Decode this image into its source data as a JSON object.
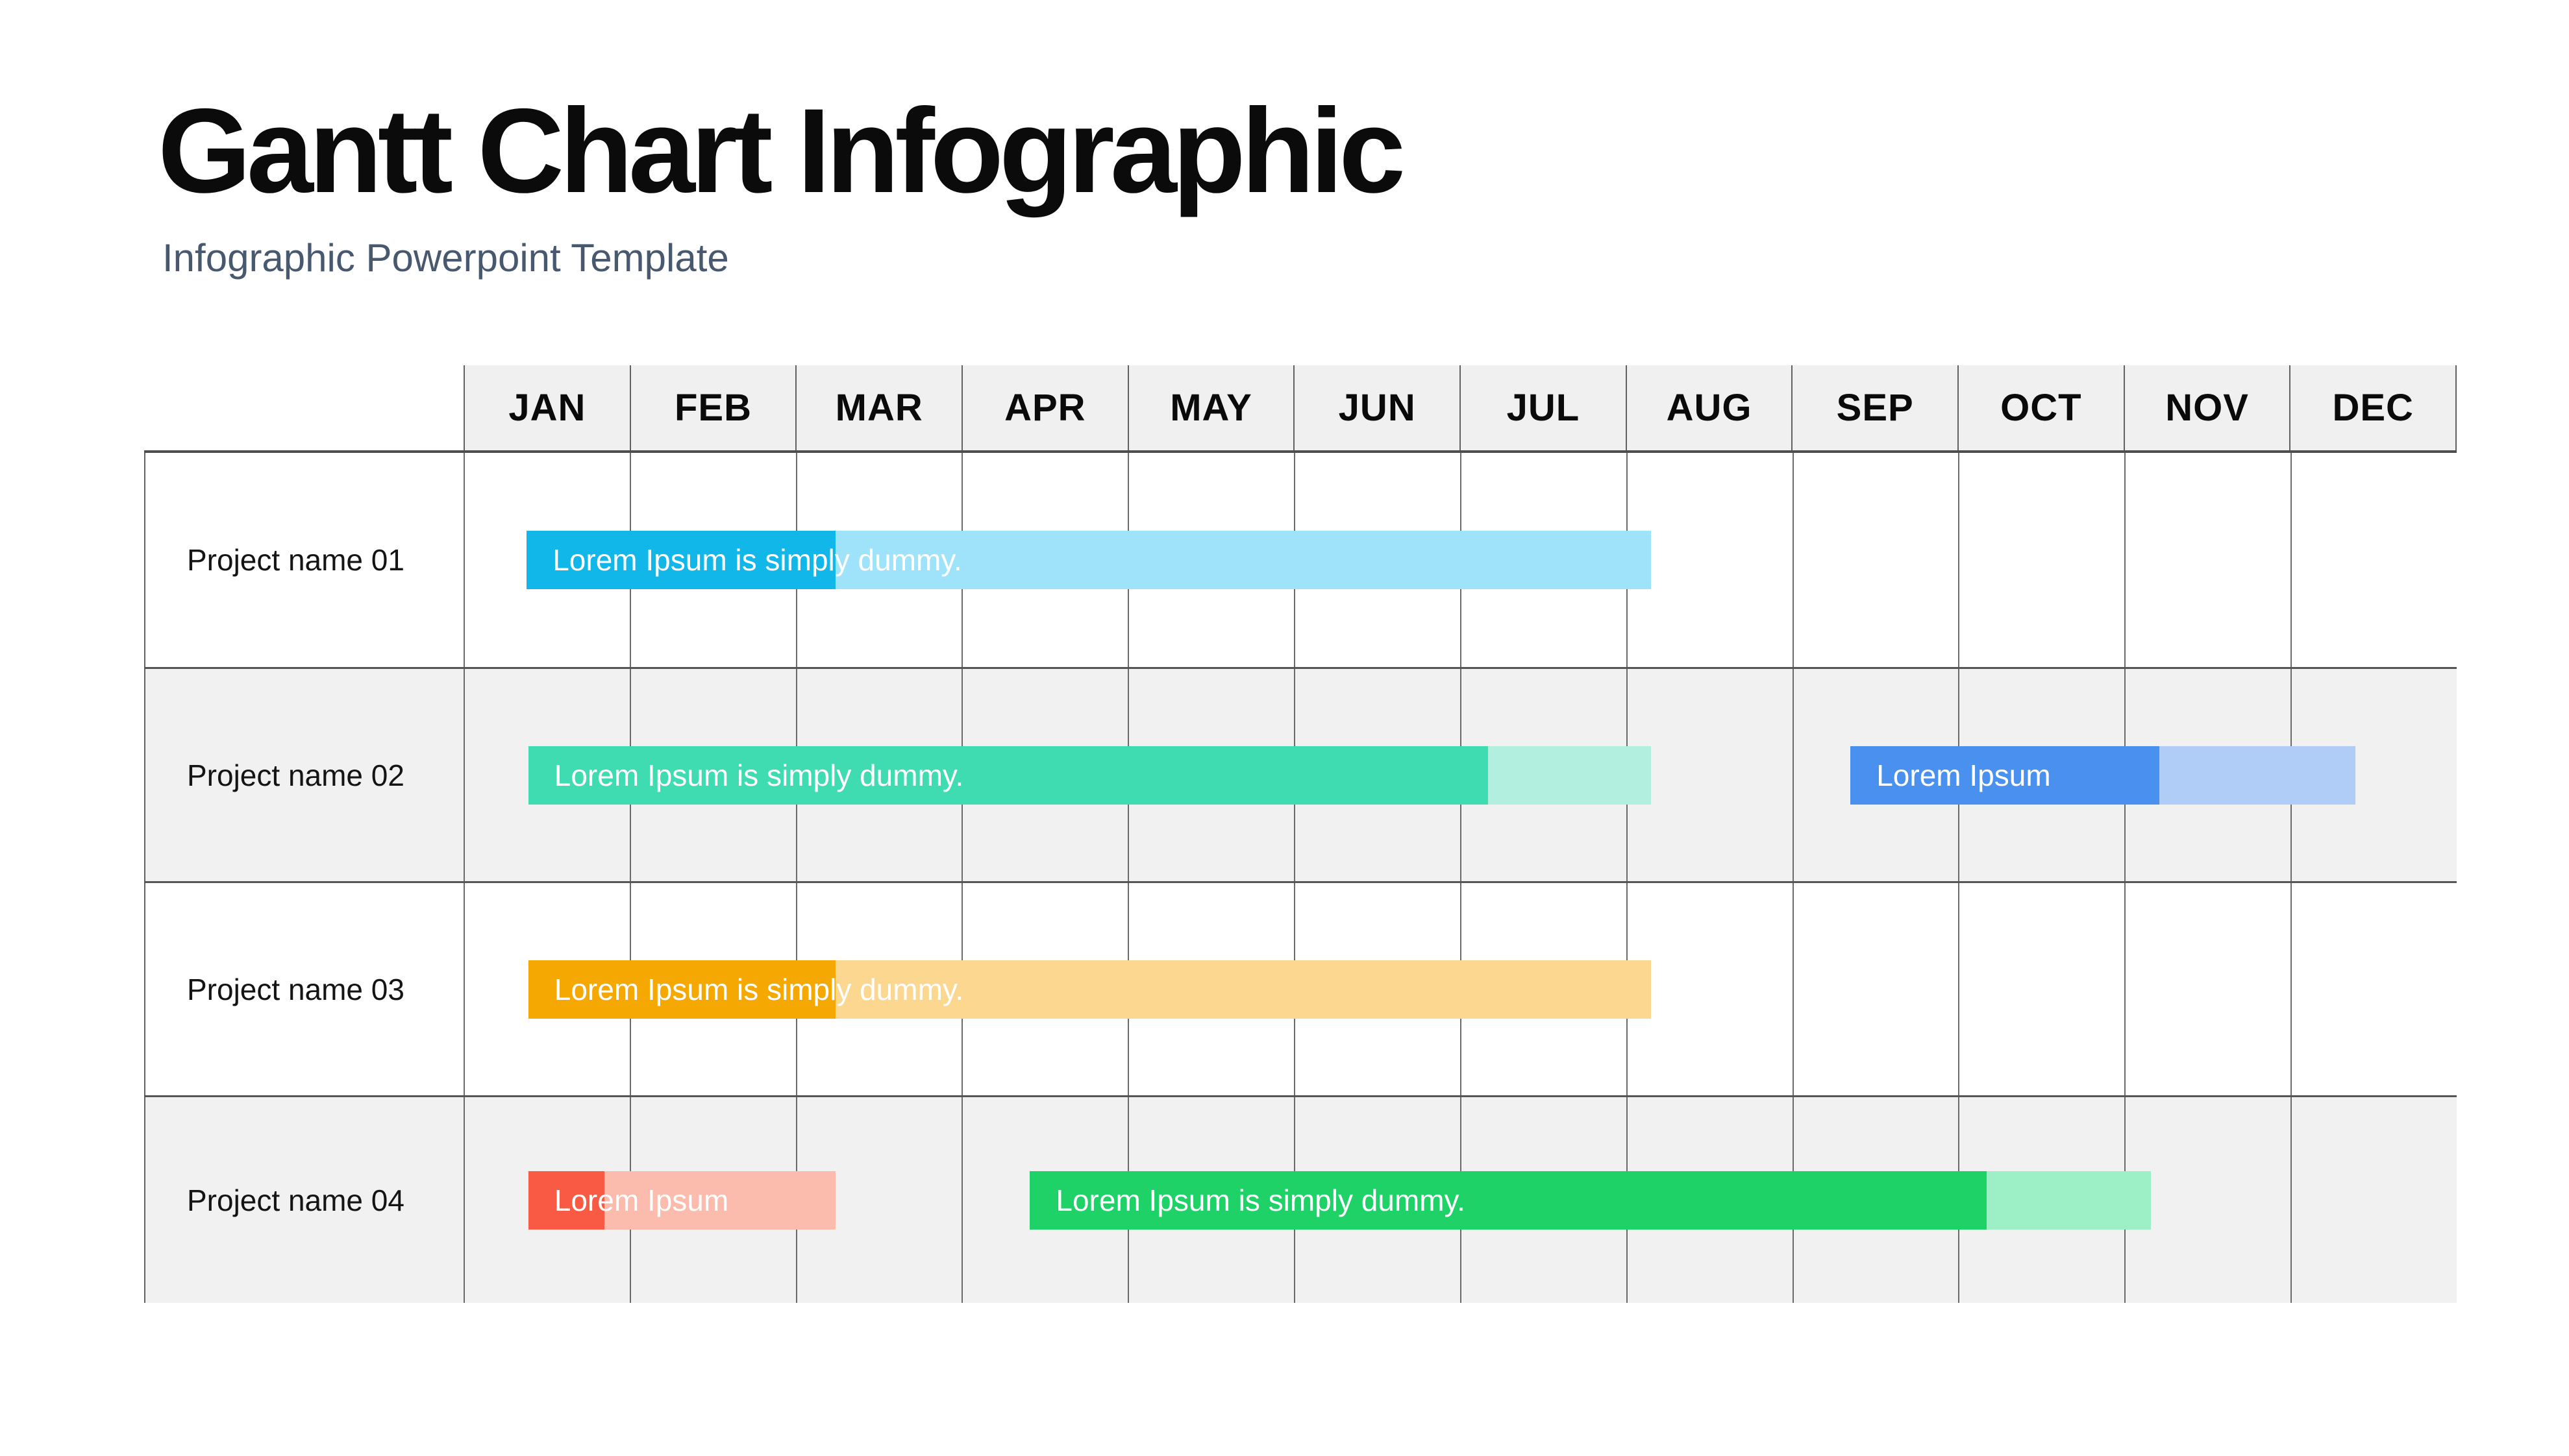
{
  "page": {
    "title": "Gantt Chart Infographic",
    "subtitle": "Infographic Powerpoint Template"
  },
  "colors": {
    "header_bg": "#F0F0F0",
    "row_alt_bg": "#F1F1F1",
    "grid_line": "#6a6a6a",
    "row_separator": "#555555",
    "title_color": "#0b0b0b",
    "subtitle_color": "#48596F",
    "bar_text_color": "#ffffff"
  },
  "chart_data": {
    "type": "gantt",
    "title": "Gantt Chart Infographic",
    "x_axis": {
      "unit": "months",
      "categories": [
        "JAN",
        "FEB",
        "MAR",
        "APR",
        "MAY",
        "JUN",
        "JUL",
        "AUG",
        "SEP",
        "OCT",
        "NOV",
        "DEC"
      ],
      "range": [
        0,
        12
      ],
      "grid": true
    },
    "legend": "none",
    "rows": [
      {
        "label": "Project name 01",
        "bars": [
          {
            "label": "Lorem Ipsum is simply dummy.",
            "start": 0.38,
            "solid_until": 2.24,
            "end": 7.15,
            "color_solid": "#12B7E9",
            "color_light": "#9FE3FA"
          }
        ]
      },
      {
        "label": "Project name 02",
        "bars": [
          {
            "label": "Lorem Ipsum is simply dummy.",
            "start": 0.39,
            "solid_until": 6.17,
            "end": 7.15,
            "color_solid": "#3FDBB1",
            "color_light": "#B2EFDE"
          },
          {
            "label": "Lorem Ipsum",
            "start": 8.35,
            "solid_until": 10.21,
            "end": 11.39,
            "color_solid": "#4A90EE",
            "color_light": "#AFCDF7"
          }
        ]
      },
      {
        "label": "Project name 03",
        "bars": [
          {
            "label": "Lorem Ipsum is simply dummy.",
            "start": 0.39,
            "solid_until": 2.24,
            "end": 7.15,
            "color_solid": "#F5A802",
            "color_light": "#FBD78F"
          }
        ]
      },
      {
        "label": "Project name 04",
        "bars": [
          {
            "label": "Lorem Ipsum",
            "start": 0.39,
            "solid_until": 0.85,
            "end": 2.24,
            "color_solid": "#F95A43",
            "color_light": "#FBBBAD"
          },
          {
            "label": "Lorem Ipsum is simply dummy.",
            "start": 3.41,
            "solid_until": 9.17,
            "end": 10.16,
            "color_solid": "#1ED268",
            "color_light": "#9DF0C6"
          }
        ]
      }
    ]
  }
}
